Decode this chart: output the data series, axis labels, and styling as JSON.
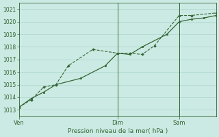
{
  "xlabel": "Pression niveau de la mer( hPa )",
  "bg_color": "#cceae4",
  "grid_color": "#aad4cc",
  "line_color": "#336633",
  "vline_color": "#336633",
  "ylim": [
    1012.5,
    1021.5
  ],
  "yticks": [
    1013,
    1014,
    1015,
    1016,
    1017,
    1018,
    1019,
    1020,
    1021
  ],
  "xtick_labels": [
    "Ven",
    "Dim",
    "Sam"
  ],
  "xtick_positions": [
    0,
    8,
    13
  ],
  "xmin": 0,
  "xmax": 16,
  "vlines_x": [
    8,
    13
  ],
  "series1_x": [
    0,
    1,
    2,
    3,
    4,
    6,
    8,
    9,
    10,
    11,
    13,
    14,
    16
  ],
  "series1_y": [
    1013.2,
    1013.8,
    1014.8,
    1015.0,
    1016.5,
    1017.8,
    1017.5,
    1017.5,
    1017.4,
    1018.1,
    1020.5,
    1020.5,
    1020.7
  ],
  "series2_x": [
    0,
    1,
    2,
    3,
    5,
    7,
    8,
    9,
    10,
    12,
    13,
    14,
    15,
    16
  ],
  "series2_y": [
    1013.2,
    1013.9,
    1014.4,
    1015.0,
    1015.5,
    1016.5,
    1017.5,
    1017.4,
    1018.0,
    1019.0,
    1020.0,
    1020.2,
    1020.3,
    1020.5
  ],
  "ytick_fontsize": 5.5,
  "xtick_fontsize": 6.0,
  "xlabel_fontsize": 6.5
}
